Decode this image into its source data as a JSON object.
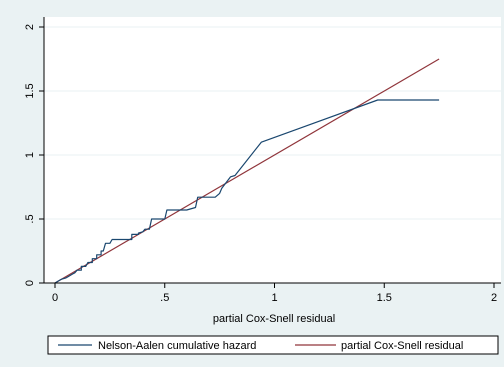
{
  "colors": {
    "background": "#eaf2f3",
    "plot_background": "#ffffff",
    "gridline": "#eaf2f3",
    "axis": "#000000"
  },
  "chart_data": {
    "type": "line",
    "title": "",
    "xlabel": "partial Cox-Snell residual",
    "ylabel": "",
    "xlim": [
      0,
      2
    ],
    "ylim": [
      0,
      2
    ],
    "x_ticks": [
      0,
      0.5,
      1,
      1.5,
      2
    ],
    "x_tick_labels": [
      "0",
      ".5",
      "1",
      "1.5",
      "2"
    ],
    "y_ticks": [
      0,
      0.5,
      1,
      1.5,
      2
    ],
    "y_tick_labels": [
      "0",
      ".5",
      "1",
      "1.5",
      "2"
    ],
    "grid": "horizontal",
    "legend_position": "bottom",
    "series": [
      {
        "name": "Nelson-Aalen cumulative hazard",
        "color": "#1a476f",
        "x": [
          0,
          0.02,
          0.03,
          0.05,
          0.06,
          0.08,
          0.09,
          0.1,
          0.12,
          0.12,
          0.14,
          0.15,
          0.17,
          0.17,
          0.19,
          0.19,
          0.21,
          0.21,
          0.22,
          0.23,
          0.25,
          0.26,
          0.3,
          0.3,
          0.35,
          0.35,
          0.38,
          0.38,
          0.4,
          0.41,
          0.43,
          0.44,
          0.5,
          0.51,
          0.58,
          0.6,
          0.64,
          0.65,
          0.68,
          0.73,
          0.75,
          0.76,
          0.8,
          0.82,
          0.94,
          1.47,
          1.75
        ],
        "y": [
          0,
          0.02,
          0.03,
          0.04,
          0.05,
          0.07,
          0.08,
          0.1,
          0.1,
          0.13,
          0.13,
          0.16,
          0.16,
          0.19,
          0.19,
          0.22,
          0.22,
          0.25,
          0.25,
          0.31,
          0.31,
          0.34,
          0.34,
          0.34,
          0.34,
          0.38,
          0.38,
          0.39,
          0.4,
          0.42,
          0.42,
          0.5,
          0.5,
          0.57,
          0.57,
          0.57,
          0.59,
          0.67,
          0.67,
          0.67,
          0.7,
          0.74,
          0.83,
          0.84,
          1.1,
          1.43,
          1.43
        ]
      },
      {
        "name": "partial Cox-Snell residual",
        "color": "#90353b",
        "x": [
          0,
          1.75
        ],
        "y": [
          0,
          1.75
        ]
      }
    ]
  }
}
